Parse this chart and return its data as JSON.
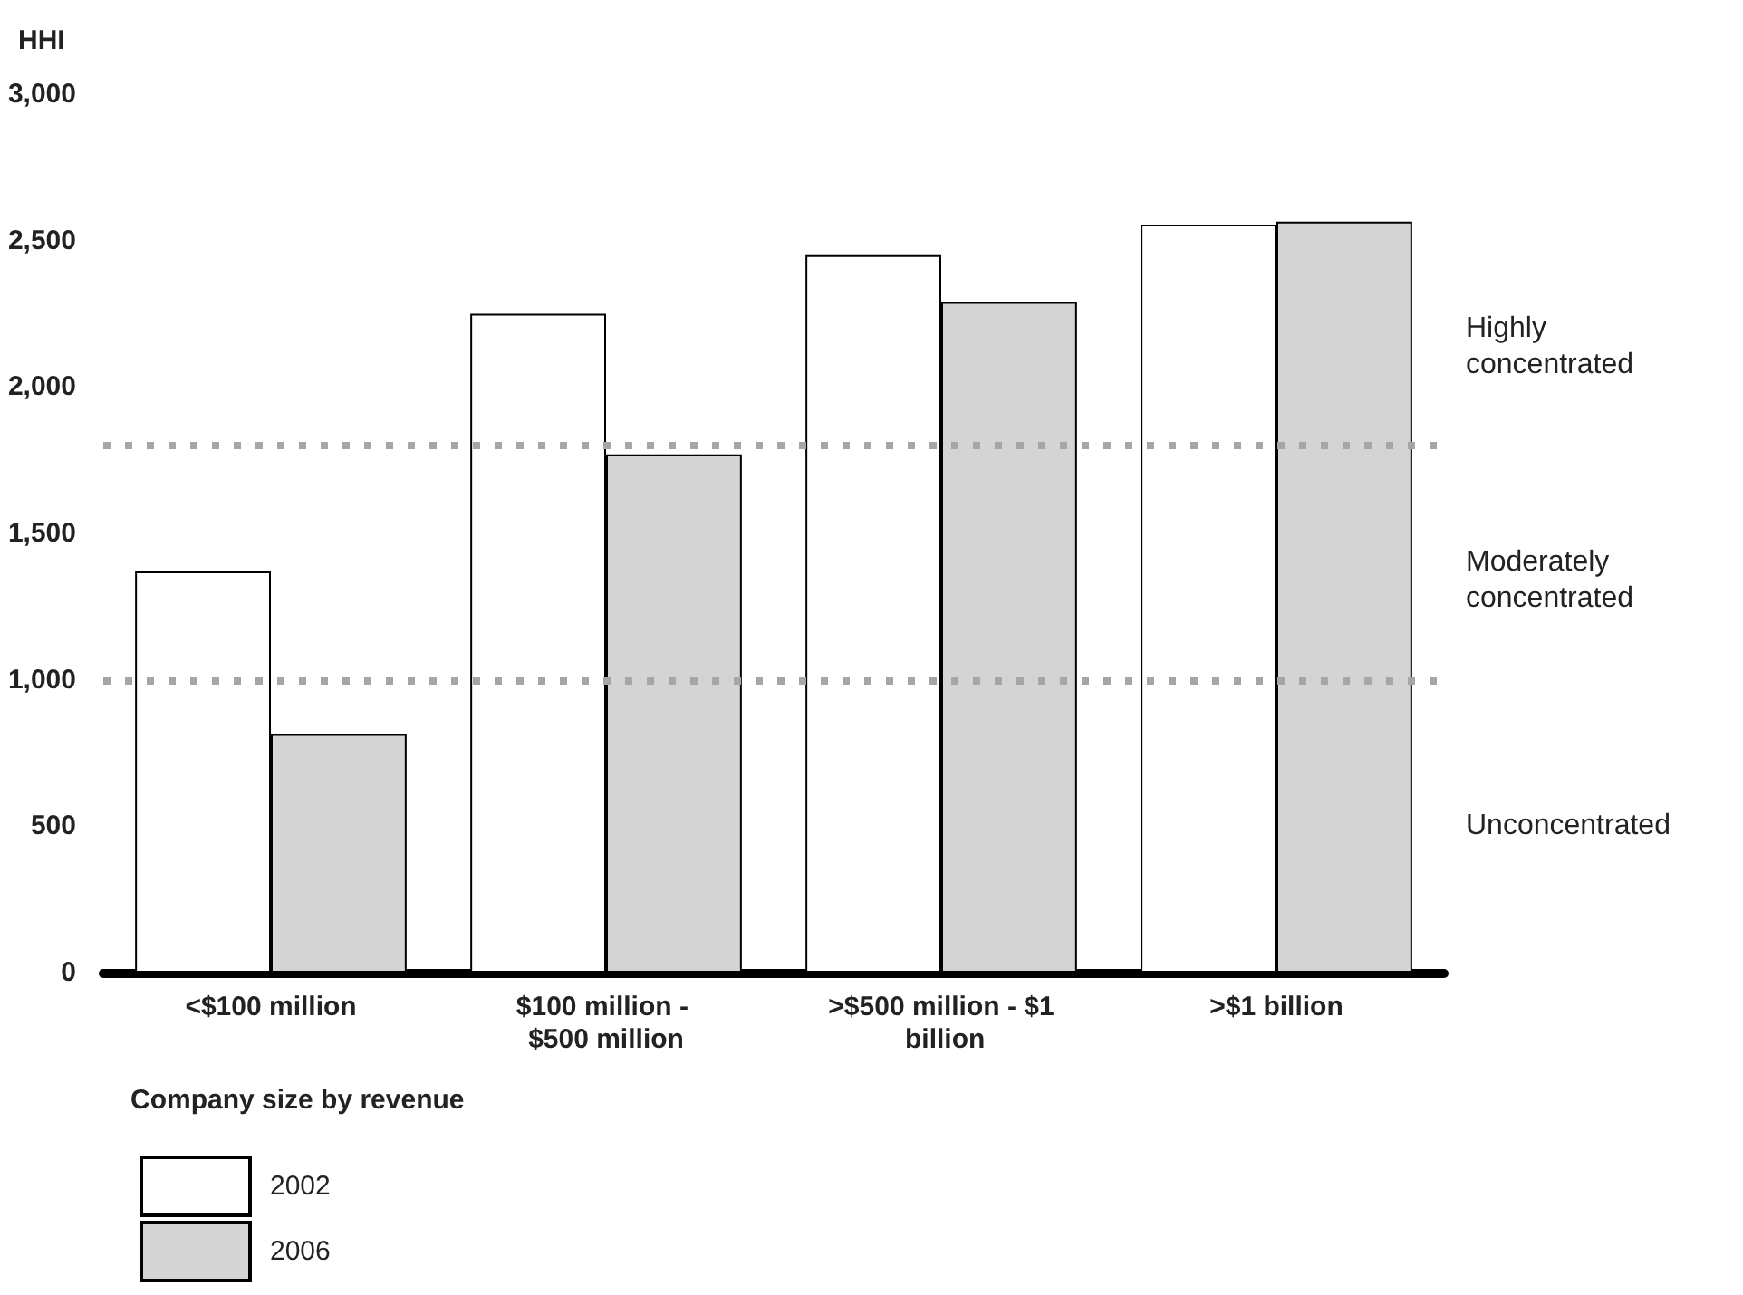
{
  "chart_data": {
    "type": "bar",
    "ylabel": "HHI",
    "xlabel": "Company size by revenue",
    "categories": [
      "<$100 million",
      "$100 million - $500 million",
      ">$500 million - $1 billion",
      ">$1 billion"
    ],
    "series": [
      {
        "name": "2002",
        "color": "#ffffff",
        "values": [
          1370,
          2250,
          2450,
          2555
        ]
      },
      {
        "name": "2006",
        "color": "#d4d4d4",
        "values": [
          815,
          1770,
          2290,
          2565
        ]
      }
    ],
    "ylim": [
      0,
      3000
    ],
    "yticks": [
      {
        "value": 0,
        "label": "0"
      },
      {
        "value": 500,
        "label": "500"
      },
      {
        "value": 1000,
        "label": "1,000"
      },
      {
        "value": 1500,
        "label": "1,500"
      },
      {
        "value": 2000,
        "label": "2,000"
      },
      {
        "value": 2500,
        "label": "2,500"
      },
      {
        "value": 3000,
        "label": "3,000"
      }
    ],
    "ref_lines": [
      {
        "axis": "y",
        "value": 1800,
        "color": "#a6a6a6",
        "line_style": "dotted"
      },
      {
        "axis": "y",
        "value": 1000,
        "color": "#a6a6a6",
        "line_style": "dotted"
      }
    ],
    "annotations": [
      "Highly concentrated",
      "Moderately concentrated",
      "Unconcentrated"
    ],
    "grid": false,
    "legend": "bottom left"
  }
}
